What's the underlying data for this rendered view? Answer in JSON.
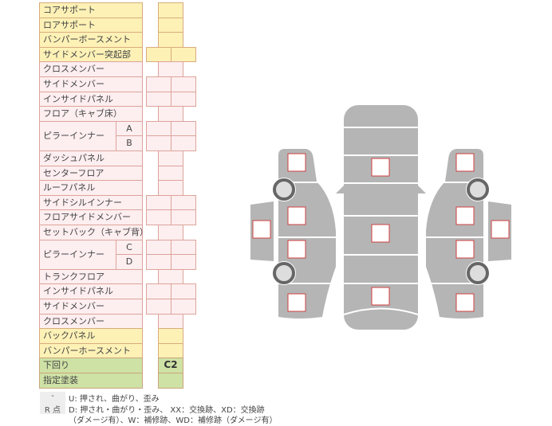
{
  "rows": [
    {
      "label": "コアサポート",
      "color": "yellow",
      "cells": 1
    },
    {
      "label": "ロアサポート",
      "color": "yellow",
      "cells": 1
    },
    {
      "label": "バンパーボースメント",
      "color": "yellow",
      "cells": 1
    },
    {
      "label": "サイドメンバー突起部",
      "color": "yellow",
      "cells": 2
    },
    {
      "label": "クロスメンバー",
      "color": "pink",
      "cells": 1
    },
    {
      "label": "サイドメンバー",
      "color": "pink",
      "cells": 2
    },
    {
      "label": "インサイドパネル",
      "color": "pink",
      "cells": 2
    },
    {
      "label": "フロア（キャブ床）",
      "color": "pink",
      "cells": 1
    },
    {
      "label": "ピラーインナー",
      "sub": [
        "A",
        "B"
      ],
      "color": "pink",
      "cells": 2
    },
    {
      "label": "ダッシュパネル",
      "color": "pink",
      "cells": 1
    },
    {
      "label": "センターフロア",
      "color": "pink",
      "cells": 1
    },
    {
      "label": "ルーフパネル",
      "color": "pink",
      "cells": 1
    },
    {
      "label": "サイドシルインナー",
      "color": "pink",
      "cells": 2
    },
    {
      "label": "フロアサイドメンバー",
      "color": "pink",
      "cells": 2
    },
    {
      "label": "セットバック（キャブ背）",
      "color": "pink",
      "cells": 1
    },
    {
      "label": "ピラーインナー",
      "sub": [
        "C",
        "D"
      ],
      "color": "pink",
      "cells": 2
    },
    {
      "label": "トランクフロア",
      "color": "pink",
      "cells": 1
    },
    {
      "label": "インサイドパネル",
      "color": "pink",
      "cells": 2
    },
    {
      "label": "サイドメンバー",
      "color": "pink",
      "cells": 2
    },
    {
      "label": "クロスメンバー",
      "color": "pink",
      "cells": 1
    },
    {
      "label": "バックパネル",
      "color": "yellow",
      "cells": 1
    },
    {
      "label": "バンパーホースメント",
      "color": "yellow",
      "cells": 1
    },
    {
      "label": "下回り",
      "color": "green",
      "cells": 1,
      "value": "C2"
    },
    {
      "label": "指定塗装",
      "color": "green",
      "cells": 1
    }
  ],
  "legend": [
    {
      "key": "-",
      "text": "U: 押され、曲がり、歪み"
    },
    {
      "key": "R 点",
      "text": "D: 押され・曲がり・歪み、 XX：交換跡、XD：交換跡",
      "text2": "（ダメージ有）、W：補修跡、WD：補修跡（ダメージ有）"
    }
  ],
  "colors": {
    "yellow": "#fdf1b6",
    "pink": "#fdeef0",
    "green": "#cfe2a6",
    "diagram": "#b5b5b5",
    "marker": "#d04040"
  }
}
